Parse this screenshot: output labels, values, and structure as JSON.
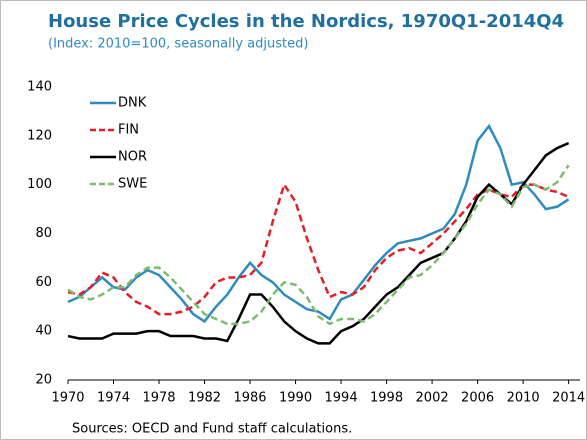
{
  "chart_data": {
    "type": "line",
    "title": "House Price Cycles in the Nordics, 1970Q1-2014Q4",
    "subtitle": "(Index: 2010=100, seasonally adjusted)",
    "source": "Sources: OECD and Fund staff calculations.",
    "x": [
      1970,
      1971,
      1972,
      1973,
      1974,
      1975,
      1976,
      1977,
      1978,
      1979,
      1980,
      1981,
      1982,
      1983,
      1984,
      1985,
      1986,
      1987,
      1988,
      1989,
      1990,
      1991,
      1992,
      1993,
      1994,
      1995,
      1996,
      1997,
      1998,
      1999,
      2000,
      2001,
      2002,
      2003,
      2004,
      2005,
      2006,
      2007,
      2008,
      2009,
      2010,
      2011,
      2012,
      2013,
      2014
    ],
    "series": [
      {
        "name": "DNK",
        "color": "#2e8bc0",
        "dash": "solid",
        "values": [
          52,
          54,
          58,
          62,
          58,
          57,
          62,
          65,
          63,
          58,
          53,
          47,
          44,
          50,
          55,
          62,
          68,
          63,
          60,
          55,
          52,
          49,
          48,
          45,
          53,
          55,
          61,
          67,
          72,
          76,
          77,
          78,
          80,
          82,
          88,
          100,
          118,
          124,
          115,
          100,
          101,
          96,
          90,
          91,
          94
        ]
      },
      {
        "name": "FIN",
        "color": "#e41e26",
        "dash": "dashed",
        "values": [
          56,
          55,
          58,
          64,
          62,
          56,
          52,
          50,
          47,
          47,
          48,
          50,
          54,
          60,
          62,
          62,
          63,
          68,
          85,
          100,
          93,
          78,
          65,
          54,
          56,
          55,
          58,
          65,
          70,
          73,
          74,
          72,
          76,
          80,
          85,
          90,
          96,
          98,
          96,
          95,
          100,
          100,
          98,
          97,
          95
        ]
      },
      {
        "name": "NOR",
        "color": "#000000",
        "dash": "solid",
        "values": [
          38,
          37,
          37,
          37,
          39,
          39,
          39,
          40,
          40,
          38,
          38,
          38,
          37,
          37,
          36,
          45,
          55,
          55,
          50,
          44,
          40,
          37,
          35,
          35,
          40,
          42,
          45,
          50,
          55,
          58,
          63,
          68,
          70,
          72,
          78,
          85,
          95,
          100,
          96,
          92,
          100,
          106,
          112,
          115,
          117
        ]
      },
      {
        "name": "SWE",
        "color": "#7fba6f",
        "dash": "dashed",
        "values": [
          57,
          54,
          53,
          55,
          58,
          58,
          63,
          66,
          66,
          62,
          57,
          52,
          47,
          45,
          43,
          43,
          44,
          48,
          55,
          60,
          59,
          54,
          46,
          43,
          45,
          45,
          44,
          47,
          52,
          57,
          62,
          63,
          67,
          72,
          78,
          84,
          92,
          98,
          96,
          91,
          99,
          100,
          98,
          101,
          108
        ]
      }
    ],
    "xlim": [
      1970,
      2015
    ],
    "xticks": [
      1970,
      1974,
      1978,
      1982,
      1986,
      1990,
      1994,
      1998,
      2002,
      2006,
      2010,
      2014
    ],
    "ylim": [
      20,
      140
    ],
    "yticks": [
      20,
      40,
      60,
      80,
      100,
      120,
      140
    ],
    "grid": false,
    "legend": "upper left"
  }
}
